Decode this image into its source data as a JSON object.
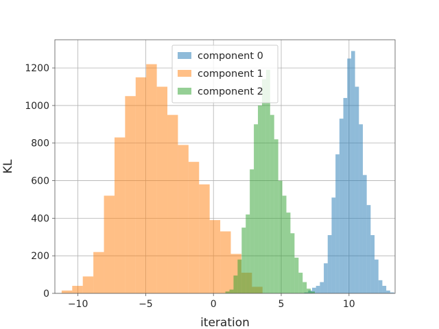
{
  "chart_data": {
    "type": "histogram",
    "title": "",
    "xlabel": "iteration",
    "ylabel": "KL",
    "xlim": [
      -11.7,
      13.4
    ],
    "ylim": [
      0,
      1350
    ],
    "xticks": [
      -10,
      -5,
      0,
      5,
      10
    ],
    "xtick_labels": [
      "−10",
      "−5",
      "0",
      "5",
      "10"
    ],
    "yticks": [
      0,
      200,
      400,
      600,
      800,
      1000,
      1200
    ],
    "ytick_labels": [
      "0",
      "200",
      "400",
      "600",
      "800",
      "1000",
      "1200"
    ],
    "grid": true,
    "legend_position": "upper center",
    "alpha": 0.5,
    "series": [
      {
        "name": "component 0",
        "color": "#1f77b4",
        "bins_start": 6.7,
        "bin_width": 0.288,
        "counts": [
          5,
          15,
          30,
          40,
          60,
          160,
          310,
          510,
          740,
          930,
          1040,
          1250,
          1290,
          1100,
          900,
          630,
          470,
          310,
          180,
          70,
          40,
          15,
          5
        ]
      },
      {
        "name": "component 1",
        "color": "#ff7f0e",
        "bins_start": -11.2,
        "bin_width": 0.78,
        "counts": [
          15,
          40,
          90,
          220,
          520,
          830,
          1050,
          1150,
          1220,
          1100,
          950,
          790,
          700,
          580,
          390,
          330,
          210,
          110,
          35
        ]
      },
      {
        "name": "component 2",
        "color": "#2ca02c",
        "bins_start": 0.88,
        "bin_width": 0.3,
        "counts": [
          10,
          20,
          95,
          180,
          350,
          420,
          660,
          900,
          1000,
          1140,
          1190,
          950,
          820,
          600,
          520,
          430,
          320,
          190,
          110,
          60,
          25,
          10
        ]
      }
    ]
  }
}
